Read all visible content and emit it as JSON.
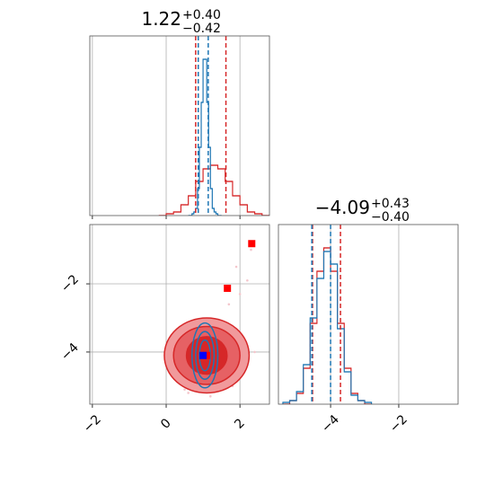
{
  "chart_data": [
    {
      "type": "histogram",
      "title": "1.22",
      "title_upper": "+0.40",
      "title_lower": "−0.42",
      "xlim": [
        -2.07,
        2.8
      ],
      "ylim": [
        0,
        100
      ],
      "xticks": [
        {
          "value": -2,
          "label": "−2"
        },
        0,
        2
      ],
      "grid": true,
      "series": [
        {
          "color": "#d62728",
          "bins": [
            -0.2,
            0,
            0.2,
            0.4,
            0.6,
            0.8,
            1.0,
            1.2,
            1.4,
            1.6,
            1.8,
            2.0,
            2.2,
            2.4,
            2.6,
            2.8
          ],
          "values": [
            0,
            1,
            2,
            6,
            11,
            19,
            26,
            28,
            26,
            19,
            11,
            6,
            2,
            1,
            0
          ]
        },
        {
          "color": "#1f77b4",
          "bins": [
            0.6,
            0.65,
            0.7,
            0.75,
            0.8,
            0.85,
            0.9,
            0.95,
            1.0,
            1.05,
            1.1,
            1.15,
            1.2,
            1.25,
            1.3,
            1.35,
            1.4,
            1.45,
            1.5
          ],
          "values": [
            0,
            0,
            1,
            2,
            4,
            15,
            38,
            63,
            87,
            87,
            63,
            38,
            15,
            4,
            2,
            1,
            0,
            0
          ]
        }
      ],
      "lines": [
        {
          "color": "#d62728",
          "values": [
            0.8,
            1.62
          ]
        },
        {
          "color": "#1f77b4",
          "values": [
            0.87,
            1.14
          ]
        }
      ]
    },
    {
      "type": "contour",
      "xlim": [
        -2.07,
        2.8
      ],
      "ylim": [
        -5.53,
        -0.26
      ],
      "xticks": [
        {
          "value": -2,
          "label": "−2"
        },
        0,
        {
          "value": 2,
          "label": "2"
        }
      ],
      "yticks": [
        {
          "value": -2,
          "label": "−2"
        },
        {
          "value": -4,
          "label": "−4"
        }
      ],
      "grid": true,
      "points": {
        "color": "#f4c6cc",
        "x": [
          0.2,
          0.4,
          0.5,
          1.6,
          1.8,
          2.0,
          2.1,
          0.3,
          1.9,
          0.6,
          1.5,
          2.3,
          2.2,
          1.2,
          0.1,
          1.7,
          2.4,
          2.0,
          0.45,
          1.95
        ],
        "y": [
          -3.6,
          -4.9,
          -5.1,
          -3.4,
          -5.0,
          -3.7,
          -4.6,
          -4.2,
          -1.5,
          -5.2,
          -3.3,
          -1.0,
          -1.9,
          -5.3,
          -3.9,
          -2.6,
          -4.0,
          -2.3,
          -3.5,
          -4.8
        ]
      },
      "contours": [
        {
          "color": "#d62728",
          "fill": "#f19a9c",
          "cx": 1.1,
          "cy": -4.1,
          "rx": 1.15,
          "ry": 1.1
        },
        {
          "color": "#d62728",
          "fill": "#e66164",
          "cx": 1.1,
          "cy": -4.1,
          "rx": 0.9,
          "ry": 0.85
        },
        {
          "color": "#d62728",
          "fill": "#d62728",
          "cx": 1.1,
          "cy": -4.1,
          "rx": 0.55,
          "ry": 0.55
        },
        {
          "color": "#1f77b4",
          "cx": 1.05,
          "cy": -4.1,
          "rx": 0.35,
          "ry": 0.95
        },
        {
          "color": "#1f77b4",
          "cx": 1.05,
          "cy": -4.1,
          "rx": 0.25,
          "ry": 0.7
        },
        {
          "color": "#1f77b4",
          "cx": 1.05,
          "cy": -4.1,
          "rx": 0.15,
          "ry": 0.45
        }
      ],
      "markers": [
        {
          "color": "#ff0000",
          "x": 1.66,
          "y": -2.13
        },
        {
          "color": "#ff0000",
          "x": 2.32,
          "y": -0.82
        },
        {
          "color": "#ff0000",
          "x": 1.1,
          "y": -4.1
        },
        {
          "color": "#0000ff",
          "x": 1.0,
          "y": -4.1
        }
      ]
    },
    {
      "type": "histogram",
      "title": "−4.09",
      "title_upper": "+0.43",
      "title_lower": "−0.40",
      "xlim": [
        -5.53,
        -0.26
      ],
      "ylim": [
        0,
        100
      ],
      "xticks": [
        {
          "value": -4,
          "label": "−4"
        },
        {
          "value": -2,
          "label": "−2"
        }
      ],
      "grid": true,
      "series": [
        {
          "color": "#d62728",
          "bins": [
            -5.4,
            -5.2,
            -5.0,
            -4.8,
            -4.6,
            -4.4,
            -4.2,
            -4.0,
            -3.8,
            -3.6,
            -3.4,
            -3.2,
            -3.0,
            -2.8
          ],
          "values": [
            0,
            2,
            6,
            20,
            45,
            74,
            87,
            74,
            45,
            20,
            6,
            2,
            0
          ]
        },
        {
          "color": "#1f77b4",
          "bins": [
            -5.4,
            -5.2,
            -5.0,
            -4.8,
            -4.6,
            -4.4,
            -4.2,
            -4.0,
            -3.8,
            -3.6,
            -3.4,
            -3.2,
            -3.0,
            -2.8
          ],
          "values": [
            1,
            2,
            7,
            22,
            48,
            70,
            85,
            78,
            42,
            18,
            5,
            2,
            1
          ]
        }
      ],
      "lines": [
        {
          "color": "#d62728",
          "values": [
            -4.53,
            -3.71
          ]
        },
        {
          "color": "#1f77b4",
          "values": [
            -4.55,
            -4.0
          ]
        }
      ]
    }
  ]
}
